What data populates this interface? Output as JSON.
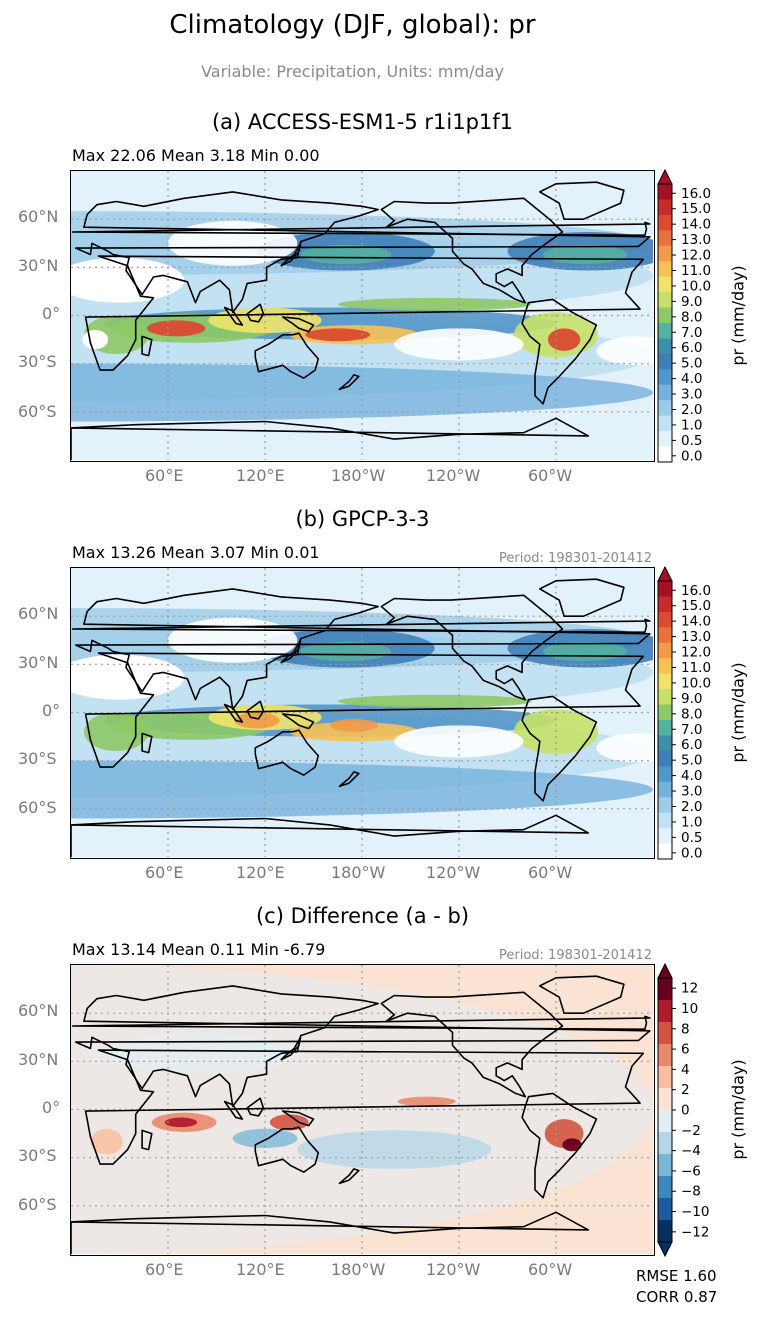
{
  "figure": {
    "title": "Climatology (DJF, global): pr",
    "subtitle": "Variable: Precipitation, Units: mm/day"
  },
  "panels": [
    {
      "title": "(a) ACCESS-ESM1-5 r1i1p1f1",
      "stats": "Max 22.06 Mean 3.18 Min 0.00",
      "period": "",
      "cbar_label": "pr (mm/day)",
      "cbar_levels": [
        "16.0",
        "15.0",
        "14.0",
        "13.0",
        "12.0",
        "11.0",
        "10.0",
        "9.0",
        "8.0",
        "7.0",
        "6.0",
        "5.0",
        "4.0",
        "3.0",
        "2.0",
        "1.0",
        "0.5",
        "0.0"
      ]
    },
    {
      "title": "(b) GPCP-3-3",
      "stats": "Max 13.26 Mean 3.07 Min 0.01",
      "period": "Period: 198301-201412",
      "cbar_label": "pr (mm/day)",
      "cbar_levels": [
        "16.0",
        "15.0",
        "14.0",
        "13.0",
        "12.0",
        "11.0",
        "10.0",
        "9.0",
        "8.0",
        "7.0",
        "6.0",
        "5.0",
        "4.0",
        "3.0",
        "2.0",
        "1.0",
        "0.5",
        "0.0"
      ]
    },
    {
      "title": "(c) Difference (a - b)",
      "stats": "Max 13.14 Mean 0.11 Min -6.79",
      "period": "Period: 198301-201412",
      "cbar_label": "pr (mm/day)",
      "cbar_levels": [
        "12",
        "10",
        "8",
        "6",
        "4",
        "2",
        "0",
        "−2",
        "−4",
        "−6",
        "−8",
        "−10",
        "−12"
      ]
    }
  ],
  "axes": {
    "lat_labels": [
      "60°N",
      "30°N",
      "0°",
      "30°S",
      "60°S"
    ],
    "lon_labels": [
      "60°E",
      "120°E",
      "180°W",
      "120°W",
      "60°W"
    ]
  },
  "metrics": {
    "rmse": "RMSE 1.60",
    "corr": "CORR 0.87"
  },
  "colors": {
    "precip_ramp": [
      "#ffffff",
      "#e3f1fa",
      "#c2e2f3",
      "#9ccce9",
      "#74b2dc",
      "#5297c9",
      "#3f7fb8",
      "#3e8fab",
      "#54b0a0",
      "#8dc966",
      "#c7e168",
      "#f1e36a",
      "#f7c155",
      "#f29a46",
      "#e8723b",
      "#db4a31",
      "#c92a2a",
      "#a50f26"
    ],
    "diff_ramp": [
      "#053061",
      "#1a5c9c",
      "#3c88be",
      "#79b6d8",
      "#b5d6e8",
      "#e2edf4",
      "#fbe3d3",
      "#f7bea0",
      "#e9896b",
      "#d2543f",
      "#b11c2d",
      "#67001f"
    ],
    "grid_line": "#9a9a9a",
    "coastline": "#000000"
  }
}
